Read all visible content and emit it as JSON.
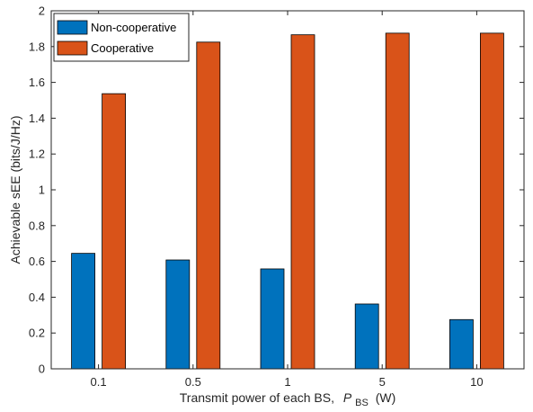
{
  "chart_data": {
    "type": "bar",
    "categories": [
      "0.1",
      "0.5",
      "1",
      "5",
      "10"
    ],
    "series": [
      {
        "name": "Non-cooperative",
        "color": "#0072BD",
        "values": [
          0.645,
          0.608,
          0.558,
          0.362,
          0.275
        ]
      },
      {
        "name": "Cooperative",
        "color": "#D95319",
        "values": [
          1.537,
          1.825,
          1.866,
          1.875,
          1.875
        ]
      }
    ],
    "ylim": [
      0,
      2
    ],
    "yticks": [
      0,
      0.2,
      0.4,
      0.6,
      0.8,
      1,
      1.2,
      1.4,
      1.6,
      1.8,
      2
    ],
    "ytick_labels": [
      "0",
      "0.2",
      "0.4",
      "0.6",
      "0.8",
      "1",
      "1.2",
      "1.4",
      "1.6",
      "1.8",
      "2"
    ],
    "ylabel": "Achievable sEE (bits/J/Hz)",
    "xlabel": {
      "prefix": "Transmit power of each BS,",
      "symbol": "P",
      "subscript": "BS",
      "unit": "(W)"
    },
    "grid": false,
    "legend": "top-left"
  }
}
